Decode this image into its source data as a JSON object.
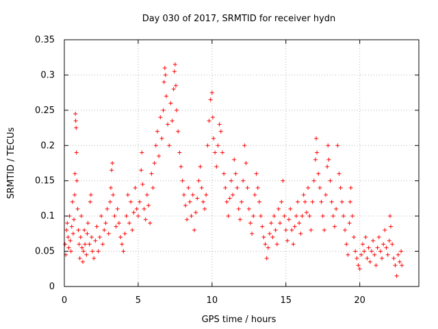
{
  "chart_data": {
    "type": "scatter",
    "title": "Day 030 of 2017, SRMTID for receiver hydn",
    "xlabel": "GPS time / hours",
    "ylabel": "SRMTID / TECUs",
    "xlim": [
      0,
      24
    ],
    "ylim": [
      0,
      0.35
    ],
    "xticks": [
      0,
      5,
      10,
      15,
      20
    ],
    "xtick_labels": [
      "0",
      "5",
      "10",
      "15",
      "20"
    ],
    "yticks": [
      0,
      0.05,
      0.1,
      0.15,
      0.2,
      0.25,
      0.3,
      0.35
    ],
    "ytick_labels": [
      "0",
      "0.05",
      "0.1",
      "0.15",
      "0.2",
      "0.25",
      "0.3",
      "0.35"
    ],
    "grid": true,
    "marker": "+",
    "color": "#ff0000",
    "series": [
      {
        "name": "SRMTID",
        "points": [
          [
            0.05,
            0.06
          ],
          [
            0.1,
            0.045
          ],
          [
            0.15,
            0.08
          ],
          [
            0.2,
            0.09
          ],
          [
            0.25,
            0.07
          ],
          [
            0.3,
            0.055
          ],
          [
            0.35,
            0.1
          ],
          [
            0.4,
            0.065
          ],
          [
            0.45,
            0.05
          ],
          [
            0.5,
            0.085
          ],
          [
            0.55,
            0.12
          ],
          [
            0.6,
            0.075
          ],
          [
            0.65,
            0.095
          ],
          [
            0.7,
            0.13
          ],
          [
            0.72,
            0.16
          ],
          [
            0.75,
            0.245
          ],
          [
            0.77,
            0.235
          ],
          [
            0.8,
            0.225
          ],
          [
            0.82,
            0.19
          ],
          [
            0.85,
            0.15
          ],
          [
            0.9,
            0.11
          ],
          [
            0.95,
            0.08
          ],
          [
            1.0,
            0.06
          ],
          [
            1.05,
            0.04
          ],
          [
            1.1,
            0.07
          ],
          [
            1.15,
            0.1
          ],
          [
            1.2,
            0.055
          ],
          [
            1.25,
            0.035
          ],
          [
            1.3,
            0.05
          ],
          [
            1.35,
            0.08
          ],
          [
            1.4,
            0.06
          ],
          [
            1.5,
            0.045
          ],
          [
            1.55,
            0.075
          ],
          [
            1.6,
            0.09
          ],
          [
            1.7,
            0.06
          ],
          [
            1.75,
            0.12
          ],
          [
            1.8,
            0.13
          ],
          [
            1.85,
            0.07
          ],
          [
            1.9,
            0.05
          ],
          [
            2.0,
            0.04
          ],
          [
            2.1,
            0.065
          ],
          [
            2.2,
            0.085
          ],
          [
            2.3,
            0.05
          ],
          [
            2.4,
            0.07
          ],
          [
            2.5,
            0.1
          ],
          [
            2.6,
            0.06
          ],
          [
            2.7,
            0.08
          ],
          [
            2.8,
            0.09
          ],
          [
            2.9,
            0.11
          ],
          [
            3.0,
            0.075
          ],
          [
            3.1,
            0.12
          ],
          [
            3.15,
            0.14
          ],
          [
            3.2,
            0.165
          ],
          [
            3.25,
            0.175
          ],
          [
            3.3,
            0.13
          ],
          [
            3.4,
            0.1
          ],
          [
            3.5,
            0.085
          ],
          [
            3.6,
            0.11
          ],
          [
            3.7,
            0.09
          ],
          [
            3.8,
            0.07
          ],
          [
            3.9,
            0.06
          ],
          [
            4.0,
            0.05
          ],
          [
            4.1,
            0.075
          ],
          [
            4.2,
            0.1
          ],
          [
            4.3,
            0.13
          ],
          [
            4.4,
            0.09
          ],
          [
            4.5,
            0.12
          ],
          [
            4.6,
            0.08
          ],
          [
            4.7,
            0.105
          ],
          [
            4.8,
            0.14
          ],
          [
            4.9,
            0.11
          ],
          [
            5.0,
            0.1
          ],
          [
            5.1,
            0.12
          ],
          [
            5.2,
            0.165
          ],
          [
            5.25,
            0.19
          ],
          [
            5.3,
            0.145
          ],
          [
            5.4,
            0.11
          ],
          [
            5.5,
            0.095
          ],
          [
            5.6,
            0.13
          ],
          [
            5.7,
            0.115
          ],
          [
            5.8,
            0.09
          ],
          [
            5.9,
            0.16
          ],
          [
            6.0,
            0.14
          ],
          [
            6.1,
            0.175
          ],
          [
            6.2,
            0.2
          ],
          [
            6.3,
            0.22
          ],
          [
            6.4,
            0.185
          ],
          [
            6.5,
            0.24
          ],
          [
            6.6,
            0.21
          ],
          [
            6.7,
            0.25
          ],
          [
            6.75,
            0.29
          ],
          [
            6.8,
            0.31
          ],
          [
            6.85,
            0.3
          ],
          [
            6.9,
            0.27
          ],
          [
            7.0,
            0.23
          ],
          [
            7.1,
            0.2
          ],
          [
            7.2,
            0.26
          ],
          [
            7.3,
            0.235
          ],
          [
            7.4,
            0.28
          ],
          [
            7.45,
            0.305
          ],
          [
            7.5,
            0.315
          ],
          [
            7.55,
            0.285
          ],
          [
            7.6,
            0.25
          ],
          [
            7.7,
            0.22
          ],
          [
            7.8,
            0.19
          ],
          [
            7.9,
            0.17
          ],
          [
            8.0,
            0.15
          ],
          [
            8.1,
            0.13
          ],
          [
            8.2,
            0.115
          ],
          [
            8.3,
            0.095
          ],
          [
            8.4,
            0.14
          ],
          [
            8.5,
            0.12
          ],
          [
            8.6,
            0.1
          ],
          [
            8.7,
            0.13
          ],
          [
            8.8,
            0.08
          ],
          [
            8.9,
            0.105
          ],
          [
            9.0,
            0.125
          ],
          [
            9.1,
            0.15
          ],
          [
            9.2,
            0.17
          ],
          [
            9.3,
            0.14
          ],
          [
            9.4,
            0.12
          ],
          [
            9.5,
            0.11
          ],
          [
            9.6,
            0.13
          ],
          [
            9.7,
            0.2
          ],
          [
            9.8,
            0.235
          ],
          [
            9.9,
            0.265
          ],
          [
            10.0,
            0.275
          ],
          [
            10.05,
            0.24
          ],
          [
            10.1,
            0.21
          ],
          [
            10.2,
            0.19
          ],
          [
            10.3,
            0.17
          ],
          [
            10.4,
            0.2
          ],
          [
            10.5,
            0.23
          ],
          [
            10.6,
            0.22
          ],
          [
            10.7,
            0.19
          ],
          [
            10.8,
            0.16
          ],
          [
            10.9,
            0.14
          ],
          [
            11.0,
            0.12
          ],
          [
            11.1,
            0.1
          ],
          [
            11.2,
            0.125
          ],
          [
            11.3,
            0.15
          ],
          [
            11.4,
            0.13
          ],
          [
            11.5,
            0.18
          ],
          [
            11.6,
            0.16
          ],
          [
            11.7,
            0.14
          ],
          [
            11.8,
            0.11
          ],
          [
            11.9,
            0.095
          ],
          [
            12.0,
            0.12
          ],
          [
            12.1,
            0.15
          ],
          [
            12.2,
            0.2
          ],
          [
            12.3,
            0.175
          ],
          [
            12.4,
            0.14
          ],
          [
            12.5,
            0.11
          ],
          [
            12.6,
            0.09
          ],
          [
            12.7,
            0.075
          ],
          [
            12.8,
            0.1
          ],
          [
            12.9,
            0.13
          ],
          [
            13.0,
            0.16
          ],
          [
            13.1,
            0.14
          ],
          [
            13.2,
            0.12
          ],
          [
            13.3,
            0.1
          ],
          [
            13.4,
            0.085
          ],
          [
            13.5,
            0.07
          ],
          [
            13.6,
            0.06
          ],
          [
            13.7,
            0.04
          ],
          [
            13.8,
            0.055
          ],
          [
            13.9,
            0.075
          ],
          [
            14.0,
            0.09
          ],
          [
            14.1,
            0.07
          ],
          [
            14.2,
            0.1
          ],
          [
            14.3,
            0.08
          ],
          [
            14.4,
            0.06
          ],
          [
            14.5,
            0.11
          ],
          [
            14.6,
            0.09
          ],
          [
            14.7,
            0.12
          ],
          [
            14.8,
            0.15
          ],
          [
            14.9,
            0.1
          ],
          [
            15.0,
            0.08
          ],
          [
            15.1,
            0.065
          ],
          [
            15.2,
            0.095
          ],
          [
            15.3,
            0.11
          ],
          [
            15.4,
            0.08
          ],
          [
            15.5,
            0.06
          ],
          [
            15.6,
            0.085
          ],
          [
            15.7,
            0.1
          ],
          [
            15.8,
            0.12
          ],
          [
            15.9,
            0.09
          ],
          [
            16.0,
            0.075
          ],
          [
            16.1,
            0.1
          ],
          [
            16.2,
            0.13
          ],
          [
            16.3,
            0.12
          ],
          [
            16.4,
            0.105
          ],
          [
            16.5,
            0.14
          ],
          [
            16.6,
            0.1
          ],
          [
            16.7,
            0.08
          ],
          [
            16.8,
            0.12
          ],
          [
            16.9,
            0.15
          ],
          [
            17.0,
            0.18
          ],
          [
            17.05,
            0.21
          ],
          [
            17.1,
            0.19
          ],
          [
            17.2,
            0.16
          ],
          [
            17.3,
            0.14
          ],
          [
            17.4,
            0.12
          ],
          [
            17.5,
            0.1
          ],
          [
            17.6,
            0.08
          ],
          [
            17.7,
            0.13
          ],
          [
            17.8,
            0.17
          ],
          [
            17.85,
            0.2
          ],
          [
            17.9,
            0.18
          ],
          [
            18.0,
            0.15
          ],
          [
            18.1,
            0.12
          ],
          [
            18.2,
            0.1
          ],
          [
            18.3,
            0.085
          ],
          [
            18.4,
            0.11
          ],
          [
            18.5,
            0.2
          ],
          [
            18.6,
            0.16
          ],
          [
            18.7,
            0.14
          ],
          [
            18.8,
            0.12
          ],
          [
            18.9,
            0.1
          ],
          [
            19.0,
            0.08
          ],
          [
            19.1,
            0.06
          ],
          [
            19.2,
            0.045
          ],
          [
            19.3,
            0.09
          ],
          [
            19.35,
            0.12
          ],
          [
            19.4,
            0.14
          ],
          [
            19.5,
            0.1
          ],
          [
            19.6,
            0.07
          ],
          [
            19.7,
            0.05
          ],
          [
            19.8,
            0.04
          ],
          [
            19.9,
            0.03
          ],
          [
            20.0,
            0.025
          ],
          [
            20.1,
            0.045
          ],
          [
            20.2,
            0.06
          ],
          [
            20.3,
            0.05
          ],
          [
            20.4,
            0.07
          ],
          [
            20.5,
            0.04
          ],
          [
            20.6,
            0.055
          ],
          [
            20.7,
            0.035
          ],
          [
            20.8,
            0.05
          ],
          [
            20.9,
            0.065
          ],
          [
            21.0,
            0.045
          ],
          [
            21.1,
            0.03
          ],
          [
            21.2,
            0.055
          ],
          [
            21.3,
            0.07
          ],
          [
            21.4,
            0.05
          ],
          [
            21.5,
            0.04
          ],
          [
            21.6,
            0.06
          ],
          [
            21.7,
            0.08
          ],
          [
            21.8,
            0.055
          ],
          [
            21.9,
            0.045
          ],
          [
            22.0,
            0.065
          ],
          [
            22.05,
            0.1
          ],
          [
            22.1,
            0.085
          ],
          [
            22.2,
            0.06
          ],
          [
            22.3,
            0.04
          ],
          [
            22.4,
            0.03
          ],
          [
            22.5,
            0.015
          ],
          [
            22.6,
            0.045
          ],
          [
            22.7,
            0.035
          ],
          [
            22.8,
            0.05
          ],
          [
            22.85,
            0.03
          ]
        ]
      }
    ]
  }
}
